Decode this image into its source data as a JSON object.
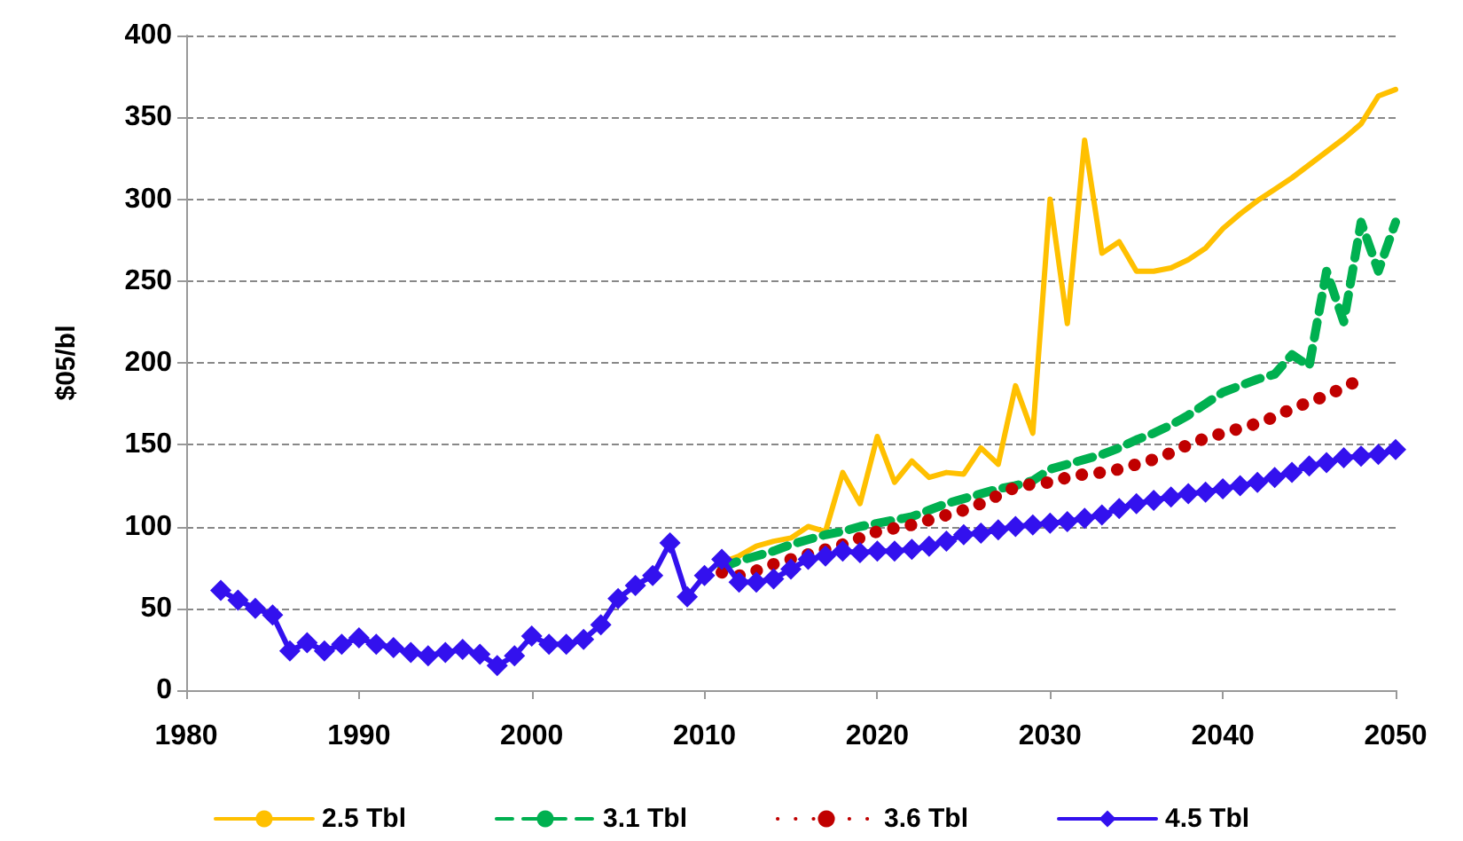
{
  "chart_data": {
    "type": "line",
    "ylabel": "$05/bl",
    "xlim": [
      1980,
      2050
    ],
    "xticks": [
      1980,
      1990,
      2000,
      2010,
      2020,
      2030,
      2040,
      2050
    ],
    "ylim": [
      0,
      400
    ],
    "yticks": [
      0,
      50,
      100,
      150,
      200,
      250,
      300,
      350,
      400
    ],
    "grid": "y",
    "legend": "bottom",
    "series": [
      {
        "name": "2.5 Tbl",
        "color": "#ffc000",
        "marker": "none",
        "line_style": "solid",
        "x": [
          2011,
          2012,
          2013,
          2014,
          2015,
          2016,
          2017,
          2018,
          2019,
          2020,
          2021,
          2022,
          2023,
          2024,
          2025,
          2026,
          2027,
          2028,
          2029,
          2030,
          2031,
          2032,
          2033,
          2034,
          2035,
          2036,
          2037,
          2038,
          2039,
          2040,
          2041,
          2042,
          2043,
          2044,
          2045,
          2046,
          2047,
          2048,
          2049,
          2050
        ],
        "values": [
          78,
          82,
          88,
          91,
          93,
          100,
          97,
          133,
          114,
          155,
          127,
          140,
          130,
          133,
          132,
          148,
          138,
          186,
          157,
          300,
          224,
          336,
          267,
          274,
          256,
          256,
          258,
          263,
          270,
          282,
          291,
          299,
          306,
          313,
          321,
          329,
          337,
          346,
          363,
          367
        ]
      },
      {
        "name": "3.1 Tbl",
        "color": "#00b050",
        "marker": "none",
        "line_style": "dashed",
        "x": [
          2011,
          2012,
          2013,
          2014,
          2015,
          2016,
          2017,
          2018,
          2019,
          2020,
          2021,
          2022,
          2023,
          2024,
          2025,
          2026,
          2027,
          2028,
          2029,
          2030,
          2031,
          2032,
          2033,
          2034,
          2035,
          2036,
          2037,
          2038,
          2039,
          2040,
          2041,
          2042,
          2043,
          2044,
          2045,
          2046,
          2047,
          2048,
          2049,
          2050
        ],
        "values": [
          75,
          79,
          82,
          85,
          89,
          92,
          95,
          97,
          100,
          102,
          104,
          106,
          110,
          114,
          117,
          120,
          123,
          125,
          128,
          135,
          138,
          141,
          144,
          148,
          153,
          157,
          162,
          168,
          175,
          182,
          186,
          190,
          193,
          205,
          198,
          256,
          225,
          286,
          256,
          286
        ]
      },
      {
        "name": "3.6 Tbl",
        "color": "#c00000",
        "marker": "none",
        "line_style": "dotted",
        "x": [
          2011,
          2012,
          2013,
          2014,
          2015,
          2016,
          2017,
          2018,
          2019,
          2020,
          2021,
          2022,
          2023,
          2024,
          2025,
          2026,
          2027,
          2028,
          2029,
          2030,
          2031,
          2032,
          2033,
          2034,
          2035,
          2036,
          2037,
          2038,
          2039,
          2040,
          2041,
          2042,
          2043,
          2044,
          2045,
          2046,
          2047,
          2048
        ],
        "values": [
          72,
          70,
          73,
          77,
          80,
          83,
          86,
          89,
          93,
          97,
          99,
          101,
          104,
          107,
          110,
          114,
          119,
          124,
          126,
          127,
          130,
          132,
          133,
          135,
          138,
          141,
          145,
          150,
          154,
          157,
          160,
          163,
          167,
          172,
          176,
          180,
          185,
          190
        ]
      },
      {
        "name": "4.5 Tbl",
        "color": "#3311ee",
        "marker": "diamond",
        "line_style": "solid",
        "x": [
          1982,
          1983,
          1984,
          1985,
          1986,
          1987,
          1988,
          1989,
          1990,
          1991,
          1992,
          1993,
          1994,
          1995,
          1996,
          1997,
          1998,
          1999,
          2000,
          2001,
          2002,
          2003,
          2004,
          2005,
          2006,
          2007,
          2008,
          2009,
          2010,
          2011,
          2012,
          2013,
          2014,
          2015,
          2016,
          2017,
          2018,
          2019,
          2020,
          2021,
          2022,
          2023,
          2024,
          2025,
          2026,
          2027,
          2028,
          2029,
          2030,
          2031,
          2032,
          2033,
          2034,
          2035,
          2036,
          2037,
          2038,
          2039,
          2040,
          2041,
          2042,
          2043,
          2044,
          2045,
          2046,
          2047,
          2048,
          2049,
          2050
        ],
        "values": [
          61,
          55,
          50,
          46,
          24,
          29,
          24,
          28,
          32,
          28,
          26,
          23,
          21,
          23,
          25,
          22,
          15,
          21,
          33,
          28,
          28,
          31,
          40,
          56,
          64,
          70,
          90,
          57,
          70,
          80,
          66,
          66,
          68,
          74,
          80,
          82,
          85,
          84,
          85,
          85,
          86,
          88,
          91,
          95,
          96,
          98,
          100,
          101,
          102,
          103,
          105,
          107,
          111,
          114,
          116,
          118,
          120,
          121,
          123,
          125,
          127,
          130,
          133,
          137,
          139,
          142,
          143,
          144,
          147
        ]
      }
    ]
  }
}
